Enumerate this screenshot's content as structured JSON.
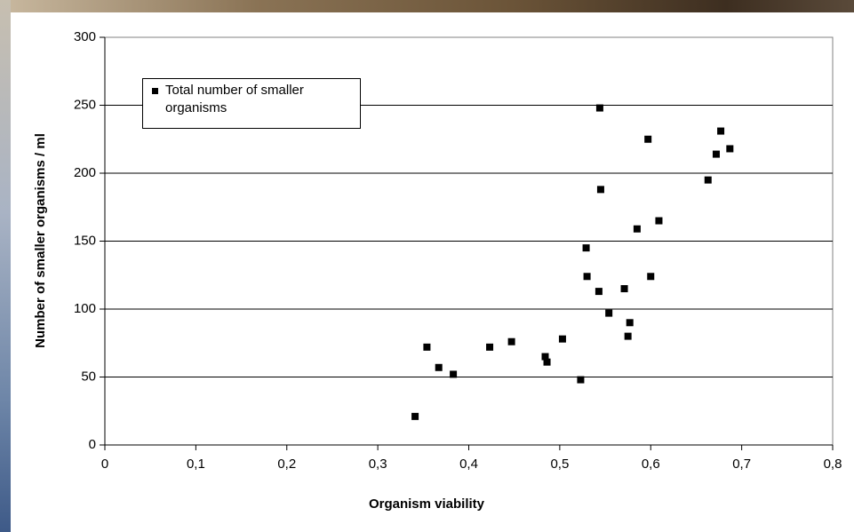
{
  "chart_data": {
    "type": "scatter",
    "xlabel": "Organism viability",
    "ylabel": "Number of smaller organisms / ml",
    "legend": "upper left",
    "grid": true,
    "series": [
      {
        "name": "Total number of smaller organisms",
        "color": "#000000",
        "x": [
          0.341,
          0.354,
          0.367,
          0.383,
          0.423,
          0.447,
          0.484,
          0.486,
          0.503,
          0.523,
          0.529,
          0.53,
          0.543,
          0.545,
          0.544,
          0.554,
          0.571,
          0.575,
          0.577,
          0.585,
          0.597,
          0.6,
          0.609,
          0.663,
          0.672,
          0.677,
          0.687
        ],
        "values": [
          21,
          72,
          57,
          52,
          72,
          76,
          65,
          61,
          78,
          48,
          145,
          124,
          113,
          188,
          248,
          97,
          115,
          80,
          90,
          159,
          225,
          124,
          165,
          195,
          214,
          231,
          218
        ]
      }
    ],
    "xlim": [
      0,
      0.8
    ],
    "xticks": [
      0,
      {
        "value": 0.1,
        "label": "0,1"
      },
      {
        "value": 0.2,
        "label": "0,2"
      },
      {
        "value": 0.3,
        "label": "0,3"
      },
      {
        "value": 0.4,
        "label": "0,4"
      },
      {
        "value": 0.5,
        "label": "0,5"
      },
      {
        "value": 0.6,
        "label": "0,6"
      },
      {
        "value": 0.7,
        "label": "0,7"
      },
      {
        "value": 0.8,
        "label": "0,8"
      }
    ],
    "ylim": [
      0,
      300
    ],
    "yticks": [
      0,
      50,
      100,
      150,
      200,
      250,
      300
    ]
  }
}
